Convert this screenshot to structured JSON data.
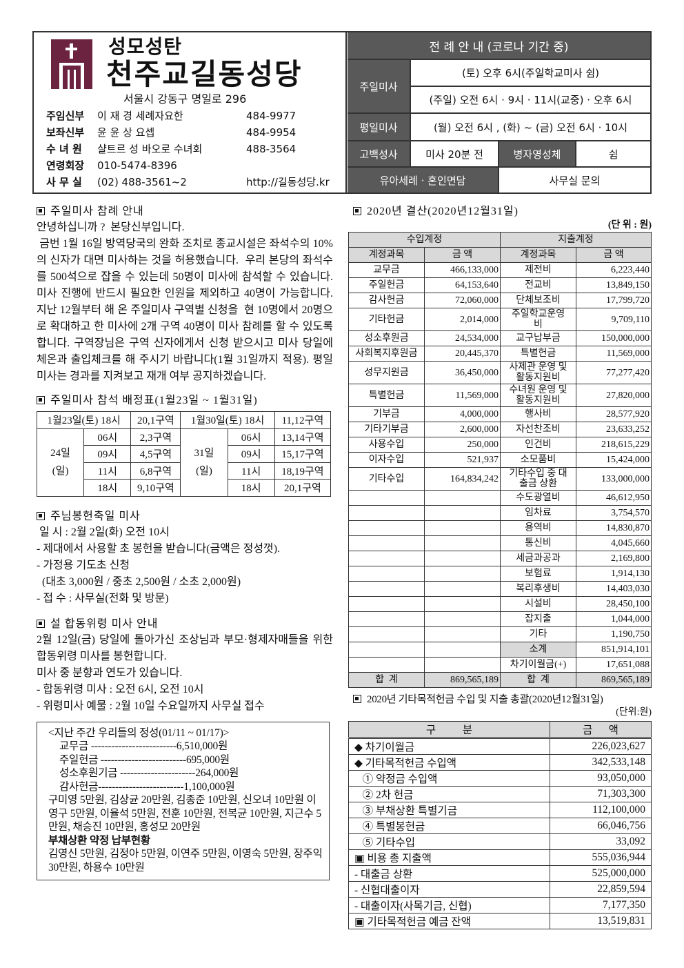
{
  "header": {
    "subtitle": "성모성탄",
    "title": "천주교길동성당",
    "address": "서울시 강동구 명일로 296",
    "staff": [
      {
        "role": "주임신부",
        "name": "이 재 경 세례자요한",
        "phone": "484-9977"
      },
      {
        "role": "보좌신부",
        "name": "윤 윤 상 요셉",
        "phone": "484-9954"
      },
      {
        "role": "수 녀 원",
        "name": "샬트르 성 바오로 수녀회",
        "phone": "488-3564"
      },
      {
        "role": "연령회장",
        "name": "010-5474-8396",
        "phone": ""
      },
      {
        "role": "사 무 실",
        "name": "(02) 488-3561~2",
        "phone": "http://길동성당.kr"
      }
    ],
    "brand_color": "#6b2340"
  },
  "liturgy": {
    "title": "전 례 안 내 (코로나 기간 중)",
    "sunday_label": "주일미사",
    "sunday_1": "(토) 오후 6시(주일학교미사 쉼)",
    "sunday_2": "(주일) 오전 6시 · 9시 · 11시(교중) · 오후 6시",
    "weekday_label": "평일미사",
    "weekday": "(월) 오전 6시 , (화) ~ (금) 오전 6시 · 10시",
    "confession_label": "고백성사",
    "confession": "미사 20분 전",
    "sick_label": "병자영성체",
    "sick": "쉼",
    "baptism_label": "유아세례 · 혼인면담",
    "baptism": "사무실 문의"
  },
  "notice1": {
    "title": "주일미사 참례 안내",
    "body": "안녕하십니까 ?  본당신부입니다.\n 금번 1월 16일 방역당국의 완화 조치로 종교시설은 좌석수의 10%의 신자가 대면 미사하는 것을 허용했습니다.  우리 본당의 좌석수를 500석으로 잡을 수 있는데 50명이 미사에 참석할 수 있습니다.  미사 진행에 반드시 필요한 인원을 제외하고 40명이 가능합니다.  지난 12월부터 해 온 주일미사 구역별 신청을  현 10명에서 20명으로 확대하고 한 미사에 2개 구역 40명이 미사 참례를 할 수 있도록 합니다. 구역장님은 구역 신자에게서 신청 받으시고 미사 당일에 체온과 출입체크를 해 주시기 바랍니다(1월 31일까지 적용). 평일미사는 경과를 지켜보고 재개 여부 공지하겠습니다."
  },
  "seating": {
    "title": "주일미사 참석 배정표(1월23일 ~ 1월31일)",
    "sat1": "1월23일(토) 18시",
    "sat1_zone": "20,1구역",
    "sat2": "1월30일(토) 18시",
    "sat2_zone": "11,12구역",
    "day1": "24일",
    "day1_sub": "(일)",
    "day2": "31일",
    "day2_sub": "(일)",
    "rows": [
      [
        "06시",
        "2,3구역",
        "06시",
        "13,14구역"
      ],
      [
        "09시",
        "4,5구역",
        "09시",
        "15,17구역"
      ],
      [
        "11시",
        "6,8구역",
        "11시",
        "18,19구역"
      ],
      [
        "18시",
        "9,10구역",
        "18시",
        "20,1구역"
      ]
    ]
  },
  "notice2": {
    "title": "주님봉헌축일 미사",
    "body": " 일 시 : 2월 2일(화) 오전 10시\n- 제대에서 사용할 초 봉헌을 받습니다(금액은 정성껏).\n- 가정용 기도초 신청\n  (대초 3,000원 / 중초 2,500원 / 소초 2,000원)\n- 접 수 : 사무실(전화 및 방문)"
  },
  "notice3": {
    "title": "설 합동위령 미사 안내",
    "body": "2월 12일(금) 당일에 돌아가신 조상님과 부모·형제자매들을 위한 합동위령 미사를 봉헌합니다.\n미사 중 분향과 연도가 있습니다.\n- 합동위령 미사 : 오전 6시, 오전 10시\n- 위령미사 예물 : 2월 10일 수요일까지 사무실 접수"
  },
  "gifts": {
    "title": "<지난 주간 우리들의 정성(01/11 ~ 01/17)>",
    "lines": [
      "교무금 -------------------------6,510,000원",
      "주일헌금 -------------------------695,000원",
      "성소후원기금 ----------------------264,000원",
      "감사헌금-------------------------1,100,000원"
    ],
    "names": "구미영 5만원, 김상균 20만원, 김종준 10만원, 신오녀 10만원 이영구 5만원, 이율석 5만원, 전훈 10만원, 전복균 10만원, 지근수 5만원, 채승진 10만원, 홍성모 20만원",
    "debt_title": "부채상환 약정 납부현황",
    "debt_names": "김영신 5만원, 김정아 5만원, 이연주 5만원, 이영숙 5만원, 장주익 30만원, 하용수  10만원"
  },
  "budget": {
    "title": "2020년 결산(2020년12월31일)",
    "unit": "(단 위 : 원)",
    "income_header": "수입계정",
    "expense_header": "지출계정",
    "col_item": "계정과목",
    "col_amount": "금 액",
    "income": [
      [
        "교무금",
        "466,133,000"
      ],
      [
        "주일헌금",
        "64,153,640"
      ],
      [
        "감사헌금",
        "72,060,000"
      ],
      [
        "기타헌금",
        "2,014,000"
      ],
      [
        "성소후원금",
        "24,534,000"
      ],
      [
        "사회복지후원금",
        "20,445,370"
      ],
      [
        "성무지원금",
        "36,450,000"
      ],
      [
        "특별헌금",
        "11,569,000"
      ],
      [
        "기부금",
        "4,000,000"
      ],
      [
        "기타기부금",
        "2,600,000"
      ],
      [
        "사용수입",
        "250,000"
      ],
      [
        "이자수입",
        "521,937"
      ],
      [
        "기타수입",
        "164,834,242"
      ]
    ],
    "expense": [
      [
        "제전비",
        "6,223,440"
      ],
      [
        "전교비",
        "13,849,150"
      ],
      [
        "단체보조비",
        "17,799,720"
      ],
      [
        "주일학교운영비",
        "9,709,110"
      ],
      [
        "교구납부금",
        "150,000,000"
      ],
      [
        "특별헌금",
        "11,569,000"
      ],
      [
        "사제관 운영 및 활동지원비",
        "77,277,420"
      ],
      [
        "수녀원 운영 및 활동지원비",
        "27,820,000"
      ],
      [
        "행사비",
        "28,577,920"
      ],
      [
        "자선찬조비",
        "23,633,252"
      ],
      [
        "인건비",
        "218,615,229"
      ],
      [
        "소모품비",
        "15,424,000"
      ],
      [
        "기타수입 중 대출금 상환",
        "133,000,000"
      ],
      [
        "수도광열비",
        "46,612,950"
      ],
      [
        "임차료",
        "3,754,570"
      ],
      [
        "용역비",
        "14,830,870"
      ],
      [
        "통신비",
        "4,045,660"
      ],
      [
        "세금과공과",
        "2,169,800"
      ],
      [
        "보험료",
        "1,914,130"
      ],
      [
        "복리후생비",
        "14,403,030"
      ],
      [
        "시설비",
        "28,450,100"
      ],
      [
        "잡지출",
        "1,044,000"
      ],
      [
        "기타",
        "1,190,750"
      ]
    ],
    "subtotal_label": "소계",
    "subtotal": "851,914,101",
    "carry_label": "차기이월금(+)",
    "carry": "17,651,088",
    "total_label": "합  계",
    "income_total": "869,565,189",
    "expense_total": "869,565,189"
  },
  "special": {
    "title": "2020년 기타목적헌금 수입 및 지출 총괄(2020년12월31일)",
    "unit": "(단위:원)",
    "col1": "구          분",
    "col2": "금      액",
    "rows": [
      [
        "◆ 차기이월금",
        "226,023,627",
        "solid"
      ],
      [
        "◆ 기타목적헌금 수입액",
        "342,533,148",
        "dot"
      ],
      [
        "   ① 약정금 수입액",
        "93,050,000",
        "dot"
      ],
      [
        "   ② 2차 헌금",
        "71,303,300",
        "dot"
      ],
      [
        "   ③ 부채상환 특별기금",
        "112,100,000",
        "dot"
      ],
      [
        "   ④ 특별봉헌금",
        "66,046,756",
        "dot"
      ],
      [
        "   ⑤ 기타수입",
        "33,092",
        "solid"
      ],
      [
        "▣ 비용 총 지출액",
        "555,036,944",
        "dot"
      ],
      [
        "- 대출금 상환",
        "525,000,000",
        "dot"
      ],
      [
        "- 신협대출이자",
        "22,859,594",
        "dot"
      ],
      [
        "- 대출이자(사목기금, 신협)",
        "7,177,350",
        "solid"
      ],
      [
        "▣ 기타목적헌금 예금 잔액",
        "13,519,831",
        "solid"
      ]
    ]
  }
}
